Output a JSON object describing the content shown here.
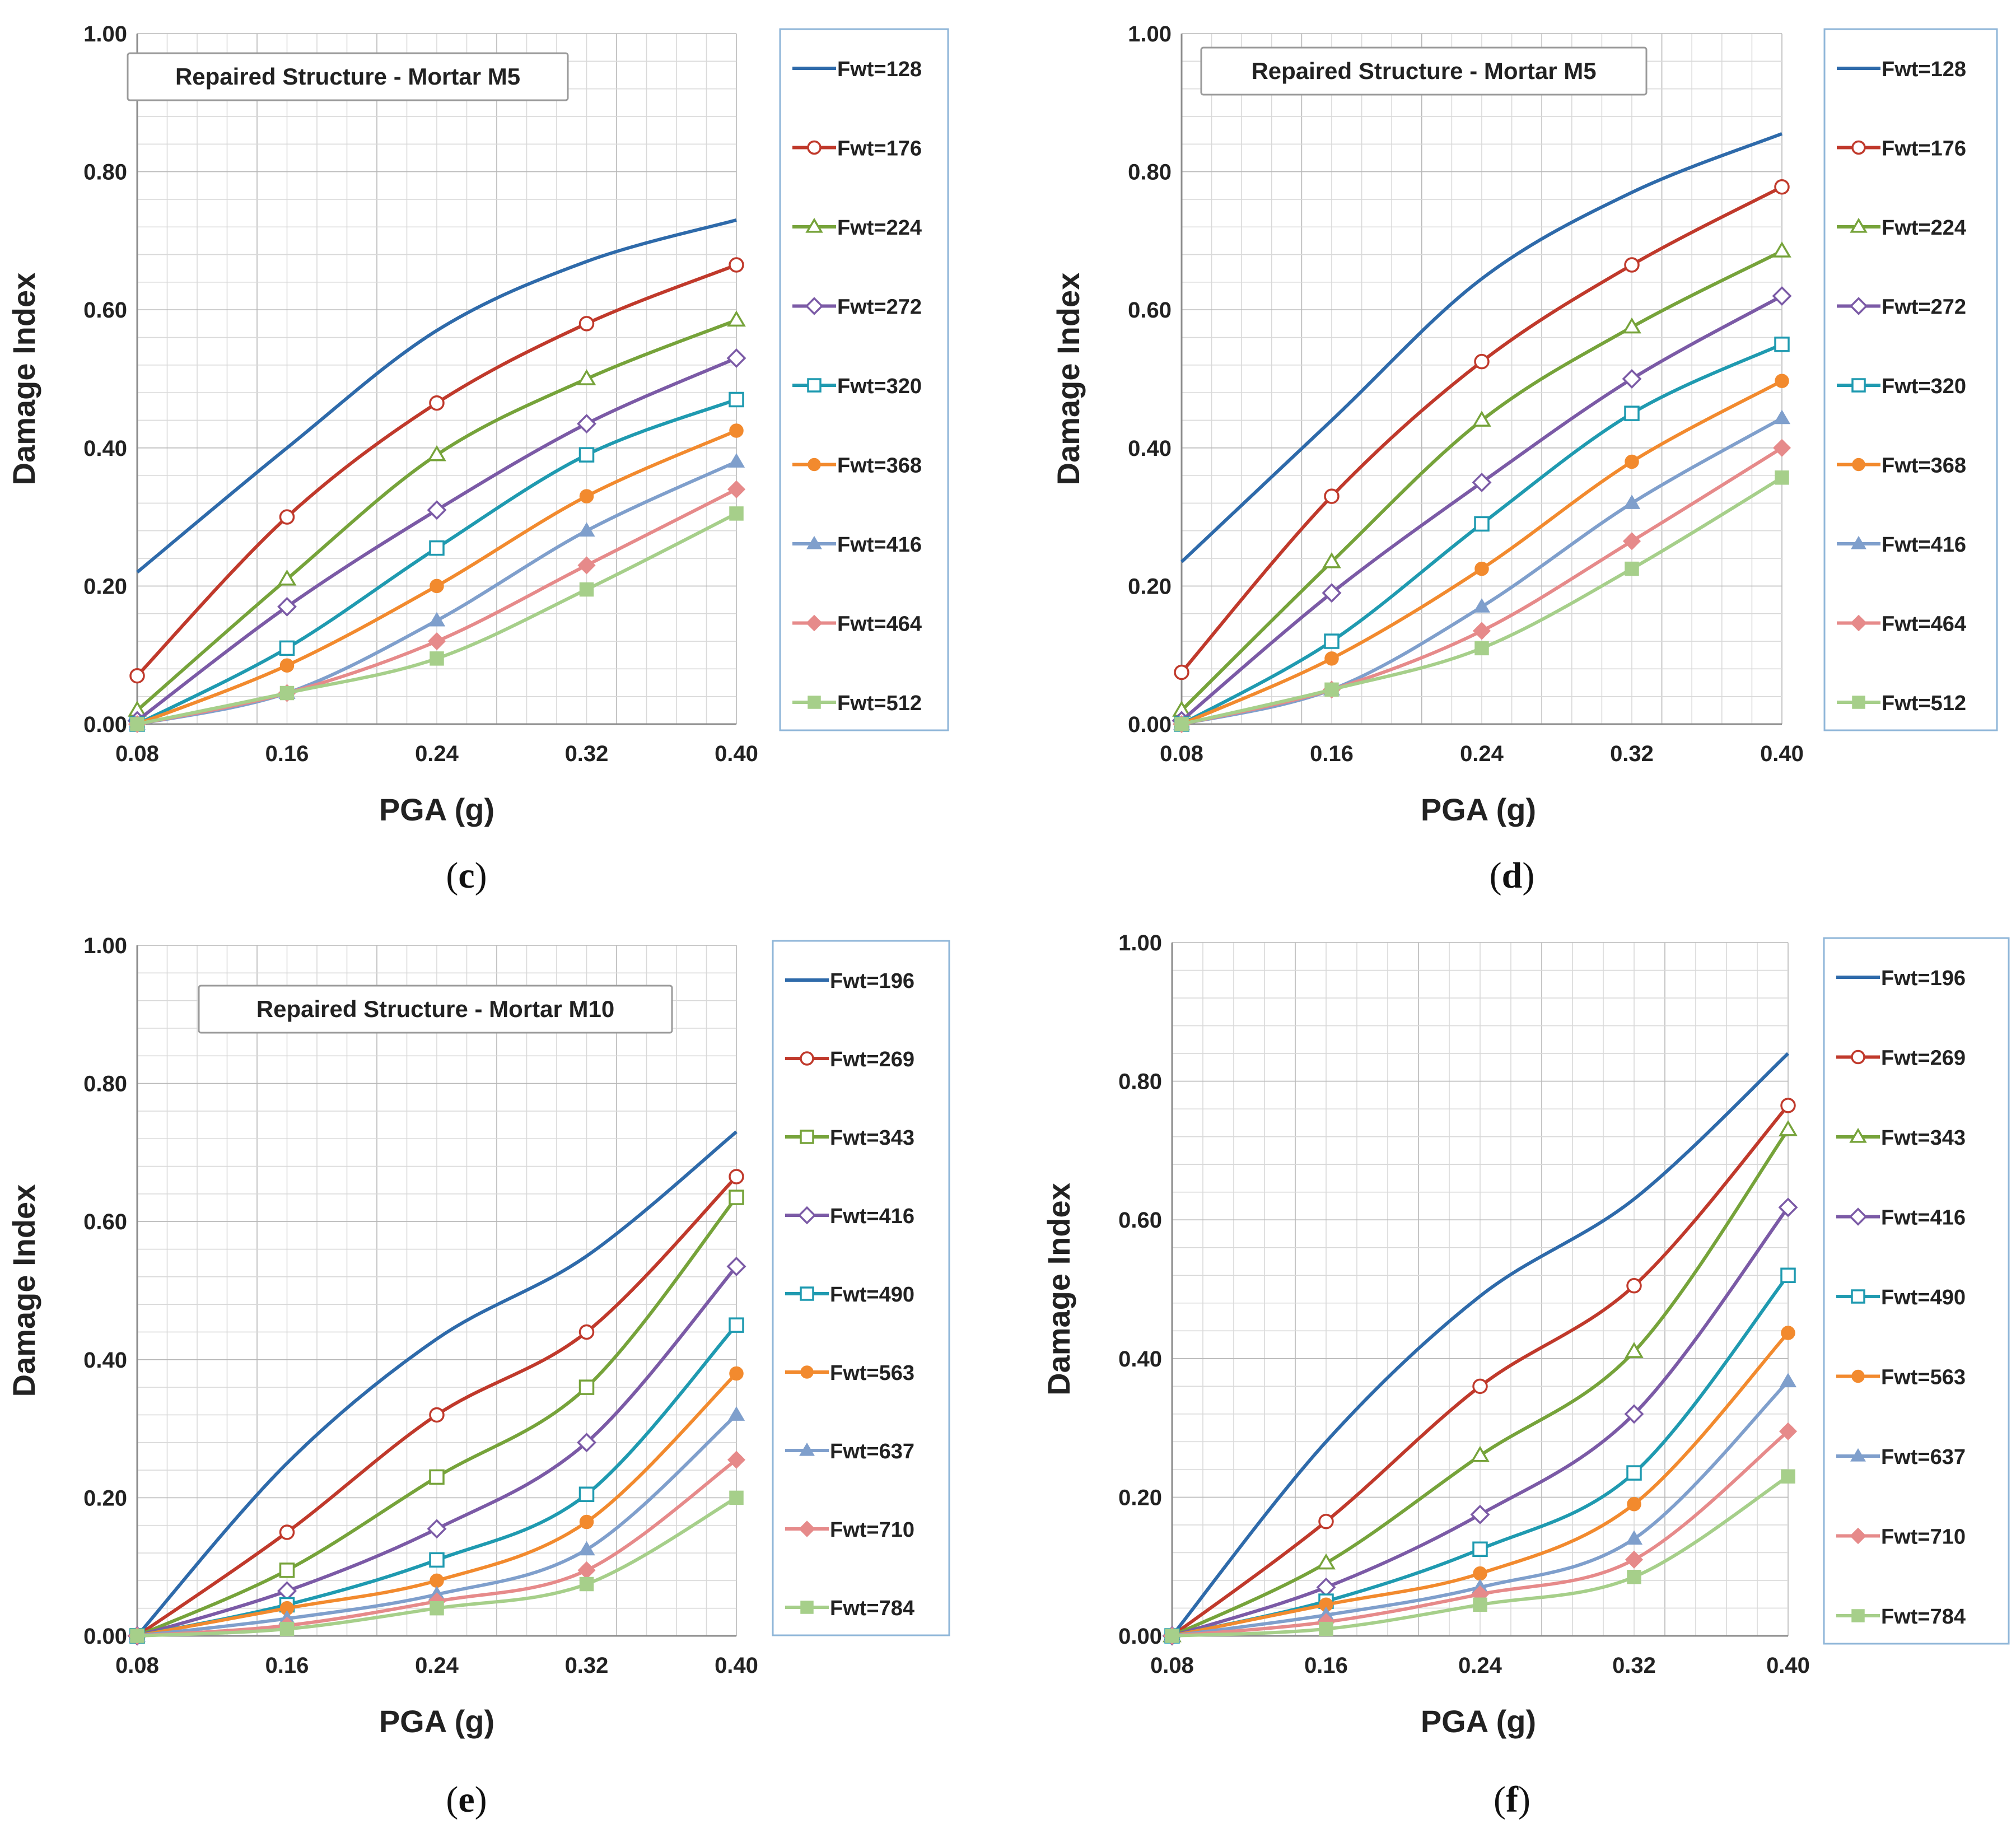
{
  "figure": {
    "panels": [
      {
        "caption_letter": "c",
        "caption_open": "(",
        "caption_close": ")"
      },
      {
        "caption_letter": "d",
        "caption_open": "(",
        "caption_close": ")"
      },
      {
        "caption_letter": "e",
        "caption_open": "(",
        "caption_close": ")"
      },
      {
        "caption_letter": "f",
        "caption_open": "(",
        "caption_close": ")"
      }
    ]
  },
  "chart_data": [
    {
      "type": "line",
      "title": "Repaired Structure - Mortar M5",
      "xlabel": "PGA (g)",
      "ylabel": "Damage Index",
      "x": [
        0.08,
        0.16,
        0.24,
        0.32,
        0.4
      ],
      "x_tick_labels": [
        "0.08",
        "0.16",
        "0.24",
        "0.32",
        "0.40"
      ],
      "y_tick_labels": [
        "0.00",
        "0.20",
        "0.40",
        "0.60",
        "0.80",
        "1.00"
      ],
      "xlim": [
        0.08,
        0.4
      ],
      "ylim": [
        0,
        1.0
      ],
      "grid": true,
      "legend_position": "right",
      "series": [
        {
          "name": "Fwt=128",
          "color": "#2E6AAA",
          "marker": "none",
          "values": [
            0.22,
            0.4,
            0.57,
            0.67,
            0.73
          ]
        },
        {
          "name": "Fwt=176",
          "color": "#C0392B",
          "marker": "circle-open",
          "values": [
            0.07,
            0.3,
            0.465,
            0.58,
            0.665
          ]
        },
        {
          "name": "Fwt=224",
          "color": "#76A33A",
          "marker": "triangle-open",
          "values": [
            0.02,
            0.21,
            0.39,
            0.5,
            0.585
          ]
        },
        {
          "name": "Fwt=272",
          "color": "#7B5AA6",
          "marker": "diamond-open",
          "values": [
            0.005,
            0.17,
            0.31,
            0.435,
            0.53
          ]
        },
        {
          "name": "Fwt=320",
          "color": "#1F9AB0",
          "marker": "square-open",
          "values": [
            0.0,
            0.11,
            0.255,
            0.39,
            0.47
          ]
        },
        {
          "name": "Fwt=368",
          "color": "#F28A2E",
          "marker": "circle-filled",
          "values": [
            0.0,
            0.085,
            0.2,
            0.33,
            0.425
          ]
        },
        {
          "name": "Fwt=416",
          "color": "#7F9FCC",
          "marker": "triangle-filled",
          "values": [
            0.0,
            0.045,
            0.15,
            0.28,
            0.38
          ]
        },
        {
          "name": "Fwt=464",
          "color": "#E68A8A",
          "marker": "diamond-filled",
          "values": [
            0.0,
            0.045,
            0.12,
            0.23,
            0.34
          ]
        },
        {
          "name": "Fwt=512",
          "color": "#A6CF8A",
          "marker": "square-filled",
          "values": [
            0.0,
            0.045,
            0.095,
            0.195,
            0.305
          ]
        }
      ]
    },
    {
      "type": "line",
      "title": "Repaired Structure - Mortar M5",
      "xlabel": "PGA (g)",
      "ylabel": "Damage Index",
      "x": [
        0.08,
        0.16,
        0.24,
        0.32,
        0.4
      ],
      "x_tick_labels": [
        "0.08",
        "0.16",
        "0.24",
        "0.32",
        "0.40"
      ],
      "y_tick_labels": [
        "0.00",
        "0.20",
        "0.40",
        "0.60",
        "0.80",
        "1.00"
      ],
      "xlim": [
        0.08,
        0.4
      ],
      "ylim": [
        0,
        1.0
      ],
      "grid": true,
      "legend_position": "right",
      "series": [
        {
          "name": "Fwt=128",
          "color": "#2E6AAA",
          "marker": "none",
          "values": [
            0.235,
            0.44,
            0.645,
            0.77,
            0.855
          ]
        },
        {
          "name": "Fwt=176",
          "color": "#C0392B",
          "marker": "circle-open",
          "values": [
            0.075,
            0.33,
            0.525,
            0.665,
            0.778
          ]
        },
        {
          "name": "Fwt=224",
          "color": "#76A33A",
          "marker": "triangle-open",
          "values": [
            0.02,
            0.235,
            0.44,
            0.575,
            0.685
          ]
        },
        {
          "name": "Fwt=272",
          "color": "#7B5AA6",
          "marker": "diamond-open",
          "values": [
            0.005,
            0.19,
            0.35,
            0.5,
            0.62
          ]
        },
        {
          "name": "Fwt=320",
          "color": "#1F9AB0",
          "marker": "square-open",
          "values": [
            0.0,
            0.12,
            0.29,
            0.45,
            0.55
          ]
        },
        {
          "name": "Fwt=368",
          "color": "#F28A2E",
          "marker": "circle-filled",
          "values": [
            0.0,
            0.095,
            0.225,
            0.38,
            0.497
          ]
        },
        {
          "name": "Fwt=416",
          "color": "#7F9FCC",
          "marker": "triangle-filled",
          "values": [
            0.0,
            0.05,
            0.17,
            0.32,
            0.443
          ]
        },
        {
          "name": "Fwt=464",
          "color": "#E68A8A",
          "marker": "diamond-filled",
          "values": [
            0.0,
            0.05,
            0.135,
            0.265,
            0.4
          ]
        },
        {
          "name": "Fwt=512",
          "color": "#A6CF8A",
          "marker": "square-filled",
          "values": [
            0.0,
            0.05,
            0.11,
            0.225,
            0.357
          ]
        }
      ]
    },
    {
      "type": "line",
      "title": "Repaired Structure - Mortar M10",
      "xlabel": "PGA (g)",
      "ylabel": "Damage Index",
      "x": [
        0.08,
        0.16,
        0.24,
        0.32,
        0.4
      ],
      "x_tick_labels": [
        "0.08",
        "0.16",
        "0.24",
        "0.32",
        "0.40"
      ],
      "y_tick_labels": [
        "0.00",
        "0.20",
        "0.40",
        "0.60",
        "0.80",
        "1.00"
      ],
      "xlim": [
        0.08,
        0.4
      ],
      "ylim": [
        0,
        1.0
      ],
      "grid": true,
      "legend_position": "right",
      "series": [
        {
          "name": "Fwt=196",
          "color": "#2E6AAA",
          "marker": "none",
          "values": [
            0.0,
            0.25,
            0.43,
            0.55,
            0.73
          ]
        },
        {
          "name": "Fwt=269",
          "color": "#C0392B",
          "marker": "circle-open",
          "values": [
            0.0,
            0.15,
            0.32,
            0.44,
            0.665
          ]
        },
        {
          "name": "Fwt=343",
          "color": "#76A33A",
          "marker": "square-open",
          "values": [
            0.0,
            0.095,
            0.23,
            0.36,
            0.635
          ]
        },
        {
          "name": "Fwt=416",
          "color": "#7B5AA6",
          "marker": "diamond-open",
          "values": [
            0.0,
            0.065,
            0.155,
            0.28,
            0.535
          ]
        },
        {
          "name": "Fwt=490",
          "color": "#1F9AB0",
          "marker": "square-open",
          "values": [
            0.0,
            0.045,
            0.11,
            0.205,
            0.45
          ]
        },
        {
          "name": "Fwt=563",
          "color": "#F28A2E",
          "marker": "circle-filled",
          "values": [
            0.0,
            0.04,
            0.08,
            0.165,
            0.38
          ]
        },
        {
          "name": "Fwt=637",
          "color": "#7F9FCC",
          "marker": "triangle-filled",
          "values": [
            0.0,
            0.025,
            0.06,
            0.125,
            0.32
          ]
        },
        {
          "name": "Fwt=710",
          "color": "#E68A8A",
          "marker": "diamond-filled",
          "values": [
            0.0,
            0.015,
            0.05,
            0.095,
            0.255
          ]
        },
        {
          "name": "Fwt=784",
          "color": "#A6CF8A",
          "marker": "square-filled",
          "values": [
            0.0,
            0.01,
            0.04,
            0.075,
            0.2
          ]
        }
      ]
    },
    {
      "type": "line",
      "title": "",
      "xlabel": "PGA (g)",
      "ylabel": "Damage Index",
      "x": [
        0.08,
        0.16,
        0.24,
        0.32,
        0.4
      ],
      "x_tick_labels": [
        "0.08",
        "0.16",
        "0.24",
        "0.32",
        "0.40"
      ],
      "y_tick_labels": [
        "0.00",
        "0.20",
        "0.40",
        "0.60",
        "0.80",
        "1.00"
      ],
      "xlim": [
        0.08,
        0.4
      ],
      "ylim": [
        0,
        1.0
      ],
      "grid": true,
      "legend_position": "right",
      "series": [
        {
          "name": "Fwt=196",
          "color": "#2E6AAA",
          "marker": "none",
          "values": [
            0.0,
            0.28,
            0.49,
            0.63,
            0.84
          ]
        },
        {
          "name": "Fwt=269",
          "color": "#C0392B",
          "marker": "circle-open",
          "values": [
            0.0,
            0.165,
            0.36,
            0.505,
            0.765
          ]
        },
        {
          "name": "Fwt=343",
          "color": "#76A33A",
          "marker": "triangle-open",
          "values": [
            0.0,
            0.105,
            0.26,
            0.41,
            0.73
          ]
        },
        {
          "name": "Fwt=416",
          "color": "#7B5AA6",
          "marker": "diamond-open",
          "values": [
            0.0,
            0.07,
            0.175,
            0.32,
            0.618
          ]
        },
        {
          "name": "Fwt=490",
          "color": "#1F9AB0",
          "marker": "square-open",
          "values": [
            0.0,
            0.05,
            0.125,
            0.235,
            0.52
          ]
        },
        {
          "name": "Fwt=563",
          "color": "#F28A2E",
          "marker": "circle-filled",
          "values": [
            0.0,
            0.045,
            0.09,
            0.19,
            0.437
          ]
        },
        {
          "name": "Fwt=637",
          "color": "#7F9FCC",
          "marker": "triangle-filled",
          "values": [
            0.0,
            0.03,
            0.07,
            0.14,
            0.367
          ]
        },
        {
          "name": "Fwt=710",
          "color": "#E68A8A",
          "marker": "diamond-filled",
          "values": [
            0.0,
            0.02,
            0.06,
            0.11,
            0.295
          ]
        },
        {
          "name": "Fwt=784",
          "color": "#A6CF8A",
          "marker": "square-filled",
          "values": [
            0.0,
            0.01,
            0.045,
            0.085,
            0.23
          ]
        }
      ]
    }
  ]
}
